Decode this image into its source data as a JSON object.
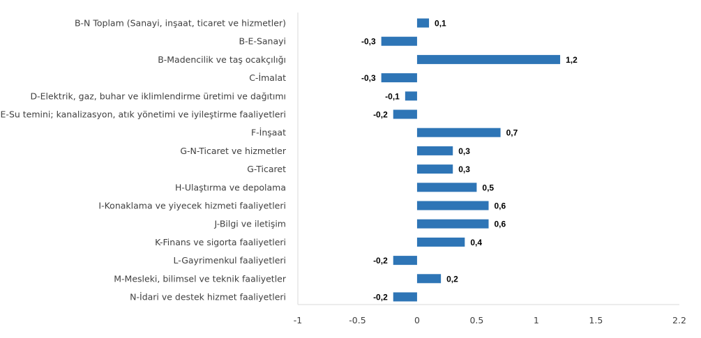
{
  "chart_data": {
    "type": "bar",
    "orientation": "horizontal",
    "categories": [
      "B-N Toplam (Sanayi, inşaat, ticaret ve hizmetler)",
      "B-E-Sanayi",
      "B-Madencilik ve taş ocakçılığı",
      "C-İmalat",
      "D-Elektrik, gaz, buhar ve iklimlendirme üretimi ve dağıtımı",
      "E-Su temini; kanalizasyon, atık yönetimi ve iyileştirme faaliyetleri",
      "F-İnşaat",
      "G-N-Ticaret ve hizmetler",
      "G-Ticaret",
      "H-Ulaştırma ve depolama",
      "I-Konaklama ve yiyecek hizmeti faaliyetleri",
      "J-Bilgi ve iletişim",
      "K-Finans ve sigorta faaliyetleri",
      "L-Gayrimenkul faaliyetleri",
      "M-Mesleki, bilimsel ve teknik faaliyetler",
      "N-İdari ve destek hizmet faaliyetleri"
    ],
    "values": [
      0.1,
      -0.3,
      1.2,
      -0.3,
      -0.1,
      -0.2,
      0.7,
      0.3,
      0.3,
      0.5,
      0.6,
      0.6,
      0.4,
      -0.2,
      0.2,
      -0.2
    ],
    "value_labels": [
      "0,1",
      "-0,3",
      "1,2",
      "-0,3",
      "-0,1",
      "-0,2",
      "0,7",
      "0,3",
      "0,3",
      "0,5",
      "0,6",
      "0,6",
      "0,4",
      "-0,2",
      "0,2",
      "-0,2"
    ],
    "x_ticks": [
      -1,
      -0.5,
      0,
      0.5,
      1,
      1.5,
      2.2
    ],
    "x_tick_labels": [
      "-1",
      "-0.5",
      "0",
      "0.5",
      "1",
      "1.5",
      "2.2"
    ],
    "xlim": [
      -1,
      2.2
    ],
    "title": "",
    "xlabel": "",
    "ylabel": "",
    "grid": false,
    "legend": "none",
    "bar_color": "#2E75B6",
    "axis_color": "#D9D9D9"
  }
}
